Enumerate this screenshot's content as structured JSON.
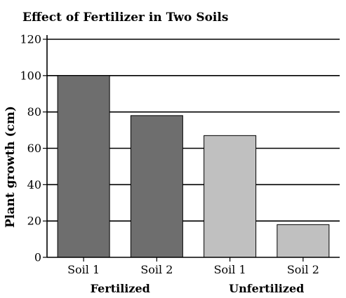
{
  "chart_data": {
    "type": "bar",
    "title": "Effect of Fertilizer in Two Soils",
    "xlabel": "",
    "ylabel": "Plant growth (cm)",
    "ylim": [
      0,
      120
    ],
    "yticks": [
      "0",
      "20",
      "40",
      "60",
      "80",
      "100",
      "120"
    ],
    "grid": true,
    "categories": [
      "Soil 1",
      "Soil 2",
      "Soil 1",
      "Soil 2"
    ],
    "values": [
      100,
      78,
      67,
      18
    ],
    "groups": [
      {
        "label": "Fertilized",
        "categories": [
          0,
          1
        ],
        "color": "#6e6e6e"
      },
      {
        "label": "Unfertilized",
        "categories": [
          2,
          3
        ],
        "color": "#c0c0c0"
      }
    ],
    "colors": [
      "#6e6e6e",
      "#6e6e6e",
      "#c0c0c0",
      "#c0c0c0"
    ]
  }
}
